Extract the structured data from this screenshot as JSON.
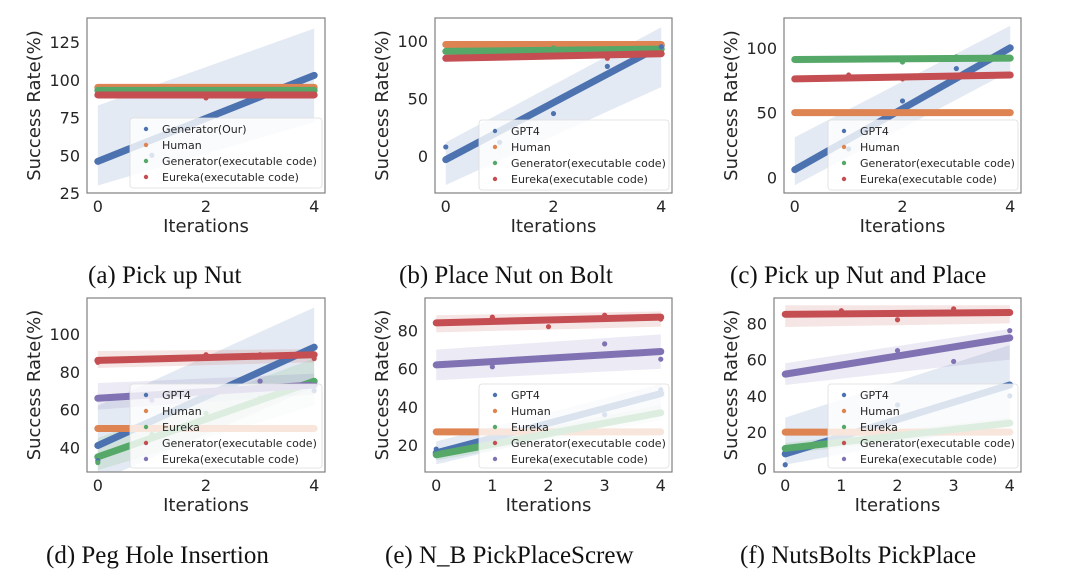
{
  "colors": {
    "blue": "#4c72b0",
    "orange": "#dd8452",
    "green": "#55a868",
    "red": "#c44e52",
    "purple": "#8172b3",
    "frame": "#808080",
    "text": "#262626"
  },
  "chart_data": [
    {
      "id": "a",
      "type": "scatter",
      "caption": "(a) Pick up Nut",
      "title": "",
      "xlabel": "Iterations",
      "ylabel": "Success Rate(%)",
      "xlim": [
        -0.2,
        4.2
      ],
      "ylim": [
        25,
        141
      ],
      "xticks": [
        0,
        2,
        4
      ],
      "xtick_labels": [
        "0",
        "2",
        "4"
      ],
      "yticks": [
        25,
        50,
        75,
        100,
        125
      ],
      "ytick_labels": [
        "25",
        "50",
        "75",
        "100",
        "125"
      ],
      "grid": false,
      "legend_position": "lower-right",
      "series": [
        {
          "name": "Generator(Our)",
          "color": "blue",
          "fit": [
            46,
            103
          ],
          "ci_at_start": [
            30,
            83
          ],
          "ci_at_end": [
            72,
            134
          ],
          "points": [
            [
              1,
              50
            ]
          ]
        },
        {
          "name": "Human",
          "color": "orange",
          "fit": [
            95,
            95
          ],
          "ci_at_start": [
            95,
            95
          ],
          "ci_at_end": [
            95,
            95
          ],
          "points": []
        },
        {
          "name": "Generator(executable code)",
          "color": "green",
          "fit": [
            93,
            93
          ],
          "ci_at_start": [
            93,
            93
          ],
          "ci_at_end": [
            93,
            93
          ],
          "points": []
        },
        {
          "name": "Eureka(executable code)",
          "color": "red",
          "fit": [
            90,
            90
          ],
          "ci_at_start": [
            89,
            91
          ],
          "ci_at_end": [
            89,
            91
          ],
          "points": [
            [
              2,
              88
            ]
          ]
        }
      ]
    },
    {
      "id": "b",
      "type": "scatter",
      "caption": "(b) Place Nut on Bolt",
      "title": "",
      "xlabel": "Iterations",
      "ylabel": "Success Rate(%)",
      "xlim": [
        -0.2,
        4.2
      ],
      "ylim": [
        -32,
        120
      ],
      "xticks": [
        0,
        2,
        4
      ],
      "xtick_labels": [
        "0",
        "2",
        "4"
      ],
      "yticks": [
        0,
        50,
        100
      ],
      "ytick_labels": [
        "0",
        "50",
        "100"
      ],
      "grid": false,
      "legend_position": "lower-right",
      "series": [
        {
          "name": "GPT4",
          "color": "blue",
          "fit": [
            -3,
            96
          ],
          "ci_at_start": [
            -25,
            12
          ],
          "ci_at_end": [
            60,
            112
          ],
          "points": [
            [
              0,
              8
            ],
            [
              1,
              12
            ],
            [
              2,
              37
            ],
            [
              3,
              78
            ],
            [
              4,
              95
            ]
          ]
        },
        {
          "name": "Human",
          "color": "orange",
          "fit": [
            97,
            97
          ],
          "ci_at_start": [
            97,
            97
          ],
          "ci_at_end": [
            97,
            97
          ],
          "points": []
        },
        {
          "name": "Generator(executable code)",
          "color": "green",
          "fit": [
            91,
            93
          ],
          "ci_at_start": [
            90,
            92
          ],
          "ci_at_end": [
            92,
            94
          ],
          "points": [
            [
              2,
              94
            ]
          ]
        },
        {
          "name": "Eureka(executable code)",
          "color": "red",
          "fit": [
            85,
            89
          ],
          "ci_at_start": [
            84,
            86
          ],
          "ci_at_end": [
            87,
            91
          ],
          "points": [
            [
              3,
              85
            ]
          ]
        }
      ]
    },
    {
      "id": "c",
      "type": "scatter",
      "caption": "(c) Pick up Nut and Place",
      "title": "",
      "xlabel": "Iterations",
      "ylabel": "Success Rate(%)",
      "xlim": [
        -0.2,
        4.2
      ],
      "ylim": [
        -12,
        123
      ],
      "xticks": [
        0,
        2,
        4
      ],
      "xtick_labels": [
        "0",
        "2",
        "4"
      ],
      "yticks": [
        0,
        50,
        100
      ],
      "ytick_labels": [
        "0",
        "50",
        "100"
      ],
      "grid": false,
      "legend_position": "lower-right",
      "series": [
        {
          "name": "GPT4",
          "color": "blue",
          "fit": [
            6,
            100
          ],
          "ci_at_start": [
            -6,
            31
          ],
          "ci_at_end": [
            82,
            117
          ],
          "points": [
            [
              1,
              22
            ],
            [
              2,
              59
            ],
            [
              3,
              84
            ]
          ]
        },
        {
          "name": "Human",
          "color": "orange",
          "fit": [
            50,
            50
          ],
          "ci_at_start": [
            50,
            50
          ],
          "ci_at_end": [
            50,
            50
          ],
          "points": []
        },
        {
          "name": "Generator(executable code)",
          "color": "green",
          "fit": [
            91,
            92
          ],
          "ci_at_start": [
            88,
            93
          ],
          "ci_at_end": [
            90,
            94
          ],
          "points": [
            [
              2,
              89
            ],
            [
              3,
              93
            ]
          ]
        },
        {
          "name": "Eureka(executable code)",
          "color": "red",
          "fit": [
            76,
            79
          ],
          "ci_at_start": [
            74,
            78
          ],
          "ci_at_end": [
            77,
            81
          ],
          "points": [
            [
              1,
              79
            ],
            [
              2,
              76
            ]
          ]
        }
      ]
    },
    {
      "id": "d",
      "type": "scatter",
      "caption": "(d) Peg Hole Insertion",
      "title": "",
      "xlabel": "Iterations",
      "ylabel": "Success Rate(%)",
      "xlim": [
        -0.2,
        4.2
      ],
      "ylim": [
        27,
        119
      ],
      "xticks": [
        0,
        2,
        4
      ],
      "xtick_labels": [
        "0",
        "2",
        "4"
      ],
      "yticks": [
        40,
        60,
        80,
        100
      ],
      "ytick_labels": [
        "40",
        "60",
        "80",
        "100"
      ],
      "grid": false,
      "legend_position": "lower-right",
      "series": [
        {
          "name": "GPT4",
          "color": "blue",
          "fit": [
            41,
            93
          ],
          "ci_at_start": [
            22,
            62
          ],
          "ci_at_end": [
            72,
            114
          ],
          "points": [
            [
              0,
              33
            ],
            [
              3,
              75
            ],
            [
              4,
              70
            ]
          ]
        },
        {
          "name": "Human",
          "color": "orange",
          "fit": [
            50,
            50
          ],
          "ci_at_start": [
            50,
            50
          ],
          "ci_at_end": [
            50,
            50
          ],
          "points": []
        },
        {
          "name": "Eureka",
          "color": "green",
          "fit": [
            35,
            75
          ],
          "ci_at_start": [
            28,
            45
          ],
          "ci_at_end": [
            62,
            87
          ],
          "points": [
            [
              0,
              32
            ],
            [
              1,
              47
            ],
            [
              2,
              58
            ],
            [
              3,
              66
            ],
            [
              4,
              75
            ]
          ]
        },
        {
          "name": "Generator(executable code)",
          "color": "red",
          "fit": [
            86,
            89
          ],
          "ci_at_start": [
            82,
            91
          ],
          "ci_at_end": [
            85,
            92
          ],
          "points": [
            [
              0,
              85
            ],
            [
              2,
              89
            ],
            [
              3,
              89
            ],
            [
              4,
              87
            ]
          ]
        },
        {
          "name": "Eureka(executable code)",
          "color": "purple",
          "fit": [
            66,
            73
          ],
          "ci_at_start": [
            60,
            74
          ],
          "ci_at_end": [
            68,
            79
          ],
          "points": [
            [
              1,
              65
            ],
            [
              3,
              75
            ],
            [
              4,
              73
            ]
          ]
        }
      ]
    },
    {
      "id": "e",
      "type": "scatter",
      "caption": "(e) N_B PickPlaceScrew",
      "title": "",
      "xlabel": "Iterations",
      "ylabel": "Success Rate(%)",
      "xlim": [
        -0.2,
        4.2
      ],
      "ylim": [
        6,
        97
      ],
      "xticks": [
        0,
        1,
        2,
        3,
        4
      ],
      "xtick_labels": [
        "0",
        "1",
        "2",
        "3",
        "4"
      ],
      "yticks": [
        20,
        40,
        60,
        80
      ],
      "ytick_labels": [
        "20",
        "40",
        "60",
        "80"
      ],
      "grid": false,
      "legend_position": "lower-right",
      "series": [
        {
          "name": "GPT4",
          "color": "blue",
          "fit": [
            16,
            47
          ],
          "ci_at_start": [
            10,
            22
          ],
          "ci_at_end": [
            38,
            52
          ],
          "points": [
            [
              0,
              18
            ],
            [
              3,
              36
            ],
            [
              4,
              49
            ]
          ]
        },
        {
          "name": "Human",
          "color": "orange",
          "fit": [
            27,
            27
          ],
          "ci_at_start": [
            27,
            27
          ],
          "ci_at_end": [
            27,
            27
          ],
          "points": []
        },
        {
          "name": "Eureka",
          "color": "green",
          "fit": [
            15,
            37
          ],
          "ci_at_start": [
            12,
            18
          ],
          "ci_at_end": [
            33,
            41
          ],
          "points": [
            [
              3,
              31
            ]
          ]
        },
        {
          "name": "Generator(executable code)",
          "color": "red",
          "fit": [
            84,
            87
          ],
          "ci_at_start": [
            79,
            88
          ],
          "ci_at_end": [
            82,
            90
          ],
          "points": [
            [
              1,
              87
            ],
            [
              2,
              82
            ],
            [
              3,
              88
            ],
            [
              4,
              86
            ]
          ]
        },
        {
          "name": "Eureka(executable code)",
          "color": "purple",
          "fit": [
            62,
            69
          ],
          "ci_at_start": [
            54,
            70
          ],
          "ci_at_end": [
            60,
            78
          ],
          "points": [
            [
              1,
              61
            ],
            [
              3,
              73
            ],
            [
              4,
              65
            ]
          ]
        }
      ]
    },
    {
      "id": "f",
      "type": "scatter",
      "caption": "(f) NutsBolts PickPlace",
      "title": "",
      "xlabel": "Iterations",
      "ylabel": "Success Rate(%)",
      "xlim": [
        -0.2,
        4.2
      ],
      "ylim": [
        -2,
        94
      ],
      "xticks": [
        0,
        1,
        2,
        3,
        4
      ],
      "xtick_labels": [
        "0",
        "1",
        "2",
        "3",
        "4"
      ],
      "yticks": [
        0,
        20,
        40,
        60,
        80
      ],
      "ytick_labels": [
        "0",
        "20",
        "40",
        "60",
        "80"
      ],
      "grid": false,
      "legend_position": "lower-right",
      "series": [
        {
          "name": "GPT4",
          "color": "blue",
          "fit": [
            8,
            46
          ],
          "ci_at_start": [
            2,
            28
          ],
          "ci_at_end": [
            25,
            68
          ],
          "points": [
            [
              0,
              2
            ],
            [
              2,
              35
            ],
            [
              4,
              46
            ],
            [
              4,
              40
            ]
          ]
        },
        {
          "name": "Human",
          "color": "orange",
          "fit": [
            20,
            20
          ],
          "ci_at_start": [
            20,
            20
          ],
          "ci_at_end": [
            20,
            20
          ],
          "points": []
        },
        {
          "name": "Eureka",
          "color": "green",
          "fit": [
            11,
            25
          ],
          "ci_at_start": [
            8,
            14
          ],
          "ci_at_end": [
            22,
            28
          ],
          "points": []
        },
        {
          "name": "Generator(executable code)",
          "color": "red",
          "fit": [
            85,
            86
          ],
          "ci_at_start": [
            78,
            90
          ],
          "ci_at_end": [
            80,
            90
          ],
          "points": [
            [
              1,
              87
            ],
            [
              2,
              82
            ],
            [
              3,
              88
            ]
          ]
        },
        {
          "name": "Eureka(executable code)",
          "color": "purple",
          "fit": [
            52,
            72
          ],
          "ci_at_start": [
            46,
            58
          ],
          "ci_at_end": [
            60,
            77
          ],
          "points": [
            [
              2,
              65
            ],
            [
              3,
              59
            ],
            [
              4,
              76
            ]
          ]
        }
      ]
    }
  ]
}
